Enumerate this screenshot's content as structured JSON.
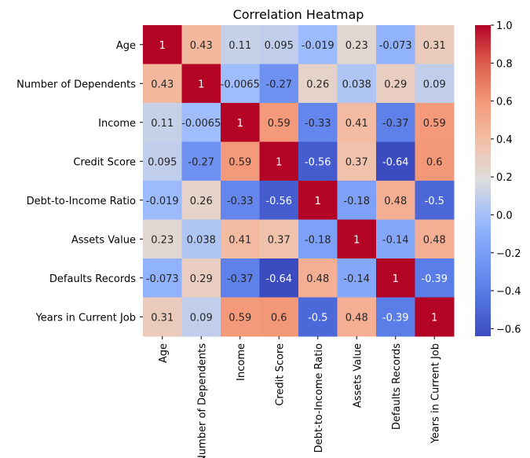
{
  "chart_data": {
    "type": "heatmap",
    "title": "Correlation Heatmap",
    "xlabel": "",
    "ylabel": "",
    "colormap": "coolwarm",
    "categories": [
      "Age",
      "Number of Dependents",
      "Income",
      "Credit Score",
      "Debt-to-Income Ratio",
      "Assets Value",
      "Defaults Records",
      "Years in Current Job"
    ],
    "values": [
      [
        1,
        0.43,
        0.11,
        0.095,
        -0.019,
        0.23,
        -0.073,
        0.31
      ],
      [
        0.43,
        1,
        -0.0065,
        -0.27,
        0.26,
        0.038,
        0.29,
        0.09
      ],
      [
        0.11,
        -0.0065,
        1,
        0.59,
        -0.33,
        0.41,
        -0.37,
        0.59
      ],
      [
        0.095,
        -0.27,
        0.59,
        1,
        -0.56,
        0.37,
        -0.64,
        0.6
      ],
      [
        -0.019,
        0.26,
        -0.33,
        -0.56,
        1,
        -0.18,
        0.48,
        -0.5
      ],
      [
        0.23,
        0.038,
        0.41,
        0.37,
        -0.18,
        1,
        -0.14,
        0.48
      ],
      [
        -0.073,
        0.29,
        -0.37,
        -0.64,
        0.48,
        -0.14,
        1,
        -0.39
      ],
      [
        0.31,
        0.09,
        0.59,
        0.6,
        -0.5,
        0.48,
        -0.39,
        1
      ]
    ],
    "value_labels": [
      [
        "1",
        "0.43",
        "0.11",
        "0.095",
        "-0.019",
        "0.23",
        "-0.073",
        "0.31"
      ],
      [
        "0.43",
        "1",
        "-0.0065",
        "-0.27",
        "0.26",
        "0.038",
        "0.29",
        "0.09"
      ],
      [
        "0.11",
        "-0.0065",
        "1",
        "0.59",
        "-0.33",
        "0.41",
        "-0.37",
        "0.59"
      ],
      [
        "0.095",
        "-0.27",
        "0.59",
        "1",
        "-0.56",
        "0.37",
        "-0.64",
        "0.6"
      ],
      [
        "-0.019",
        "0.26",
        "-0.33",
        "-0.56",
        "1",
        "-0.18",
        "0.48",
        "-0.5"
      ],
      [
        "0.23",
        "0.038",
        "0.41",
        "0.37",
        "-0.18",
        "1",
        "-0.14",
        "0.48"
      ],
      [
        "-0.073",
        "0.29",
        "-0.37",
        "-0.64",
        "0.48",
        "-0.14",
        "1",
        "-0.39"
      ],
      [
        "0.31",
        "0.09",
        "0.59",
        "0.6",
        "-0.5",
        "0.48",
        "-0.39",
        "1"
      ]
    ],
    "vmin": -0.64,
    "vmax": 1,
    "colorbar_ticks": [
      1.0,
      0.8,
      0.6,
      0.4,
      0.2,
      0.0,
      -0.2,
      -0.4,
      -0.6
    ],
    "colorbar_tick_labels": [
      "1.0",
      "0.8",
      "0.6",
      "0.4",
      "0.2",
      "0.0",
      "−0.2",
      "−0.4",
      "−0.6"
    ],
    "grid": false,
    "legend": "colorbar-right"
  }
}
